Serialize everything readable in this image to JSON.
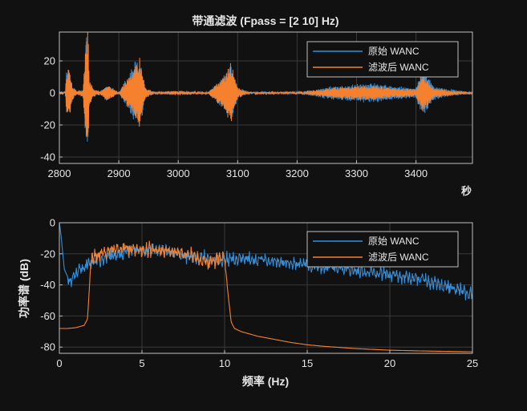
{
  "chart_data": [
    {
      "type": "line",
      "title": "带通滤波 (Fpass = [2 10] Hz)",
      "xlabel": "秒",
      "ylabel": "",
      "xlim": [
        2800,
        3495
      ],
      "ylim": [
        -44,
        38
      ],
      "xticks": [
        2800,
        2900,
        3000,
        3100,
        3200,
        3300,
        3400
      ],
      "yticks": [
        -40,
        -20,
        0,
        20
      ],
      "grid": true,
      "legend_position": "top-right",
      "series": [
        {
          "name": "原始 WANC",
          "color": "#2f8fdc",
          "description_points": {
            "x": [
              2800,
              2810,
              2812,
              2818,
              2822,
              2830,
              2840,
              2845,
              2848,
              2850,
              2858,
              2870,
              2880,
              2900,
              2930,
              2935,
              2945,
              2960,
              3000,
              3050,
              3080,
              3088,
              3092,
              3100,
              3120,
              3200,
              3260,
              3300,
              3330,
              3360,
              3400,
              3410,
              3415,
              3430,
              3460,
              3495
            ],
            "y": [
              0,
              0,
              14,
              -12,
              4,
              1,
              -2,
              37,
              -34,
              8,
              2,
              1,
              5,
              0,
              21,
              -22,
              3,
              0,
              1,
              0,
              12,
              -18,
              15,
              -3,
              0,
              0,
              4,
              -5,
              6,
              4,
              3,
              16,
              -13,
              4,
              2,
              0
            ]
          }
        },
        {
          "name": "滤波后 WANC",
          "color": "#f5812f",
          "description_points": {
            "x": [
              2800,
              2810,
              2812,
              2818,
              2822,
              2830,
              2840,
              2845,
              2848,
              2850,
              2858,
              2870,
              2880,
              2900,
              2930,
              2935,
              2945,
              2960,
              3000,
              3050,
              3080,
              3088,
              3092,
              3100,
              3120,
              3200,
              3260,
              3300,
              3330,
              3360,
              3400,
              3410,
              3415,
              3430,
              3460,
              3495
            ],
            "y": [
              0,
              0,
              14,
              -15,
              4,
              1,
              -2,
              34,
              -44,
              8,
              2,
              1,
              5,
              0,
              18,
              -22,
              3,
              0,
              1,
              0,
              12,
              -20,
              15,
              -3,
              0,
              0,
              3,
              -4,
              4,
              3,
              2,
              12,
              -10,
              3,
              1,
              0
            ]
          }
        }
      ]
    },
    {
      "type": "line",
      "title": "",
      "xlabel": "频率 (Hz)",
      "ylabel": "功率谱 (dB)",
      "xlim": [
        0,
        25
      ],
      "ylim": [
        -84,
        0
      ],
      "xticks": [
        0,
        5,
        10,
        15,
        20,
        25
      ],
      "yticks": [
        -80,
        -60,
        -40,
        -20,
        0
      ],
      "grid": true,
      "legend_position": "top-right",
      "series": [
        {
          "name": "原始 WANC",
          "color": "#2f8fdc",
          "x": [
            0,
            0.1,
            0.3,
            0.6,
            1.0,
            1.5,
            2.0,
            3.0,
            4.0,
            5.0,
            6.0,
            7.0,
            8.0,
            9.0,
            10.0,
            11.0,
            12.0,
            13.0,
            14.0,
            15.0,
            16.0,
            17.0,
            18.0,
            19.0,
            20.0,
            21.0,
            22.0,
            23.0,
            24.0,
            25.0
          ],
          "y": [
            0,
            -8,
            -30,
            -37,
            -34,
            -28,
            -25,
            -22,
            -19,
            -18,
            -18,
            -20,
            -22,
            -24,
            -24,
            -23,
            -24,
            -25,
            -26,
            -27,
            -28,
            -29,
            -31,
            -32,
            -34,
            -35,
            -37,
            -40,
            -43,
            -46
          ]
        },
        {
          "name": "滤波后 WANC",
          "color": "#f5812f",
          "x": [
            0,
            0.5,
            1.0,
            1.5,
            1.7,
            1.8,
            1.9,
            2.0,
            2.5,
            3.0,
            4.0,
            5.0,
            6.0,
            7.0,
            8.0,
            9.0,
            9.5,
            10.0,
            10.2,
            10.4,
            10.6,
            11.0,
            12.0,
            13.0,
            14.0,
            15.0,
            16.0,
            18.0,
            20.0,
            22.0,
            25.0
          ],
          "y": [
            -68,
            -68,
            -67.5,
            -66,
            -62,
            -45,
            -26,
            -22,
            -20,
            -18,
            -16,
            -17,
            -18,
            -19,
            -21,
            -26,
            -24,
            -22,
            -45,
            -64,
            -68,
            -70,
            -73,
            -75,
            -77,
            -78.5,
            -79.5,
            -81,
            -82,
            -82.5,
            -83
          ]
        }
      ]
    }
  ]
}
